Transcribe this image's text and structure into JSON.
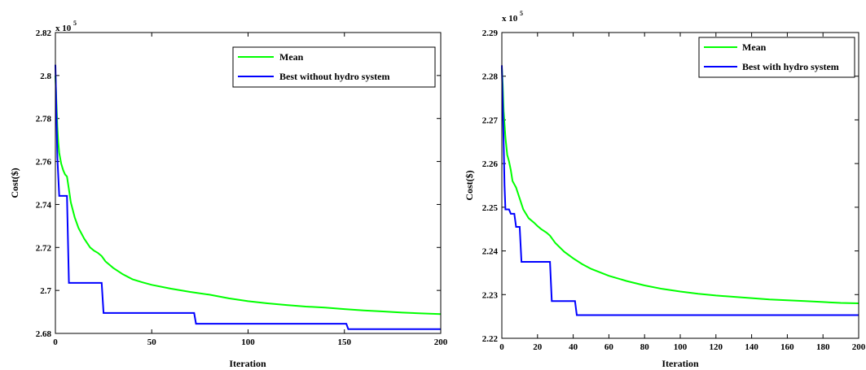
{
  "chart_data": [
    {
      "type": "line",
      "title": "",
      "xlabel": "Iteration",
      "ylabel": "Cost($)",
      "exponent_label": "x 10",
      "exponent_power": "5",
      "xlim": [
        0,
        200
      ],
      "ylim": [
        2.68,
        2.82
      ],
      "xticks": [
        0,
        50,
        100,
        150,
        200
      ],
      "xtick_labels": [
        "0",
        "50",
        "100",
        "150",
        "200"
      ],
      "yticks": [
        2.68,
        2.7,
        2.72,
        2.74,
        2.76,
        2.78,
        2.8,
        2.82
      ],
      "ytick_labels": [
        "2.68",
        "2.7",
        "2.72",
        "2.74",
        "2.76",
        "2.78",
        "2.8",
        "2.82"
      ],
      "grid": false,
      "legend_position": "top-right",
      "series": [
        {
          "name": "Mean",
          "color": "#00ff00",
          "x": [
            0,
            0.5,
            1,
            1.5,
            2,
            3,
            4,
            5,
            6,
            7,
            8,
            10,
            12,
            15,
            18,
            20,
            22,
            24,
            26,
            30,
            35,
            40,
            45,
            50,
            60,
            70,
            80,
            90,
            100,
            110,
            120,
            130,
            140,
            150,
            160,
            170,
            180,
            190,
            200
          ],
          "y": [
            2.8,
            2.788,
            2.776,
            2.769,
            2.764,
            2.759,
            2.756,
            2.754,
            2.753,
            2.747,
            2.741,
            2.734,
            2.729,
            2.724,
            2.72,
            2.7185,
            2.7175,
            2.716,
            2.7135,
            2.7105,
            2.7075,
            2.7052,
            2.7038,
            2.7026,
            2.7008,
            2.6993,
            2.698,
            2.6963,
            2.695,
            2.694,
            2.6932,
            2.6925,
            2.692,
            2.6913,
            2.6907,
            2.6902,
            2.6897,
            2.6893,
            2.689
          ]
        },
        {
          "name": "Best without hydro system",
          "color": "#0000ff",
          "x": [
            0,
            1,
            2,
            2,
            6,
            6,
            7,
            7,
            24,
            24,
            25,
            25,
            72,
            72,
            73,
            73,
            151,
            151,
            152,
            152,
            200
          ],
          "y": [
            2.805,
            2.762,
            2.744,
            2.744,
            2.744,
            2.744,
            2.7035,
            2.7035,
            2.7035,
            2.7035,
            2.6895,
            2.6895,
            2.6895,
            2.6895,
            2.6845,
            2.6845,
            2.6845,
            2.6845,
            2.682,
            2.682,
            2.682
          ]
        }
      ]
    },
    {
      "type": "line",
      "title": "",
      "xlabel": "Iteration",
      "ylabel": "Cost($)",
      "exponent_label": "x 10",
      "exponent_power": "5",
      "xlim": [
        0,
        200
      ],
      "ylim": [
        2.22,
        2.29
      ],
      "xticks": [
        0,
        20,
        40,
        60,
        80,
        100,
        120,
        140,
        160,
        180,
        200
      ],
      "xtick_labels": [
        "0",
        "20",
        "40",
        "60",
        "80",
        "100",
        "120",
        "140",
        "160",
        "180",
        "200"
      ],
      "yticks": [
        2.22,
        2.23,
        2.24,
        2.25,
        2.26,
        2.27,
        2.28,
        2.29
      ],
      "ytick_labels": [
        "2.22",
        "2.23",
        "2.24",
        "2.25",
        "2.26",
        "2.27",
        "2.28",
        "2.29"
      ],
      "grid": false,
      "legend_position": "top-right",
      "series": [
        {
          "name": "Mean",
          "color": "#00ff00",
          "x": [
            0,
            0.5,
            1,
            2,
            3,
            4,
            5,
            6,
            8,
            10,
            12,
            15,
            18,
            20,
            22,
            25,
            27,
            30,
            35,
            40,
            45,
            50,
            60,
            70,
            80,
            90,
            100,
            110,
            120,
            130,
            140,
            150,
            160,
            170,
            180,
            190,
            200
          ],
          "y": [
            2.282,
            2.278,
            2.272,
            2.266,
            2.262,
            2.2605,
            2.2585,
            2.256,
            2.2545,
            2.252,
            2.2495,
            2.2475,
            2.2465,
            2.2457,
            2.245,
            2.2442,
            2.2435,
            2.2418,
            2.2398,
            2.2383,
            2.237,
            2.2359,
            2.2343,
            2.2331,
            2.2321,
            2.2313,
            2.2307,
            2.2302,
            2.2298,
            2.2295,
            2.2292,
            2.2289,
            2.2287,
            2.2285,
            2.2283,
            2.2281,
            2.228
          ]
        },
        {
          "name": "Best with hydro system",
          "color": "#0000ff",
          "x": [
            0,
            1,
            1.5,
            2,
            2,
            4,
            4,
            5,
            5,
            7,
            7,
            8,
            8,
            9,
            9,
            10,
            10,
            11,
            11,
            27,
            27,
            28,
            28,
            41,
            41,
            42,
            42,
            200
          ],
          "y": [
            2.2825,
            2.265,
            2.255,
            2.2495,
            2.2495,
            2.2495,
            2.2495,
            2.2485,
            2.2485,
            2.2485,
            2.2485,
            2.2455,
            2.2455,
            2.2455,
            2.2455,
            2.2455,
            2.2455,
            2.2375,
            2.2375,
            2.2375,
            2.2375,
            2.2285,
            2.2285,
            2.2285,
            2.2285,
            2.2253,
            2.2253,
            2.2253
          ]
        }
      ]
    }
  ]
}
